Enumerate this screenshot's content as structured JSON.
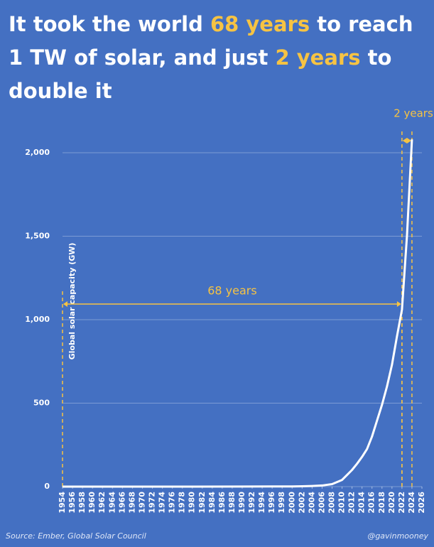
{
  "chart_data": {
    "type": "line",
    "title_lines": [
      [
        "It took the world ",
        "68 years",
        " to reach"
      ],
      [
        "1 TW of solar, and just ",
        "2 years",
        " to"
      ],
      [
        "double it"
      ]
    ],
    "ylabel": "Global solar capacity (GW)",
    "x": [
      1954,
      1960,
      1970,
      1980,
      1990,
      2000,
      2002,
      2004,
      2006,
      2008,
      2010,
      2011,
      2012,
      2013,
      2014,
      2015,
      2016,
      2017,
      2018,
      2019,
      2020,
      2021,
      2022,
      2023,
      2024
    ],
    "values": [
      0,
      0,
      0,
      0.01,
      0.3,
      1.2,
      2,
      3.7,
      6.7,
      15,
      40,
      70,
      100,
      137,
      178,
      225,
      300,
      395,
      490,
      600,
      730,
      900,
      1060,
      1500,
      2080
    ],
    "color": "#ffffff",
    "xlim": [
      1954,
      2026
    ],
    "xticks": [
      1954,
      1956,
      1958,
      1960,
      1962,
      1964,
      1966,
      1968,
      1970,
      1972,
      1974,
      1976,
      1978,
      1980,
      1982,
      1984,
      1986,
      1988,
      1990,
      1992,
      1994,
      1996,
      1998,
      2000,
      2002,
      2004,
      2006,
      2008,
      2010,
      2012,
      2014,
      2016,
      2018,
      2020,
      2022,
      2024,
      2026
    ],
    "ylim": [
      0,
      2100
    ],
    "yticks": [
      0,
      500,
      {
        "value": 1000,
        "label": "1,000"
      },
      {
        "value": 1500,
        "label": "1,500"
      },
      {
        "value": 2000,
        "label": "2,000"
      }
    ],
    "grid": true,
    "annotations": [
      {
        "text": "68 years",
        "x": [
          1954,
          2022
        ]
      },
      {
        "text": "2 years",
        "x": [
          2022,
          2024
        ]
      }
    ],
    "annotation_color": "#f6c343",
    "source": "Source: Ember, Global Solar Council",
    "credit": "@gavinmooney"
  }
}
